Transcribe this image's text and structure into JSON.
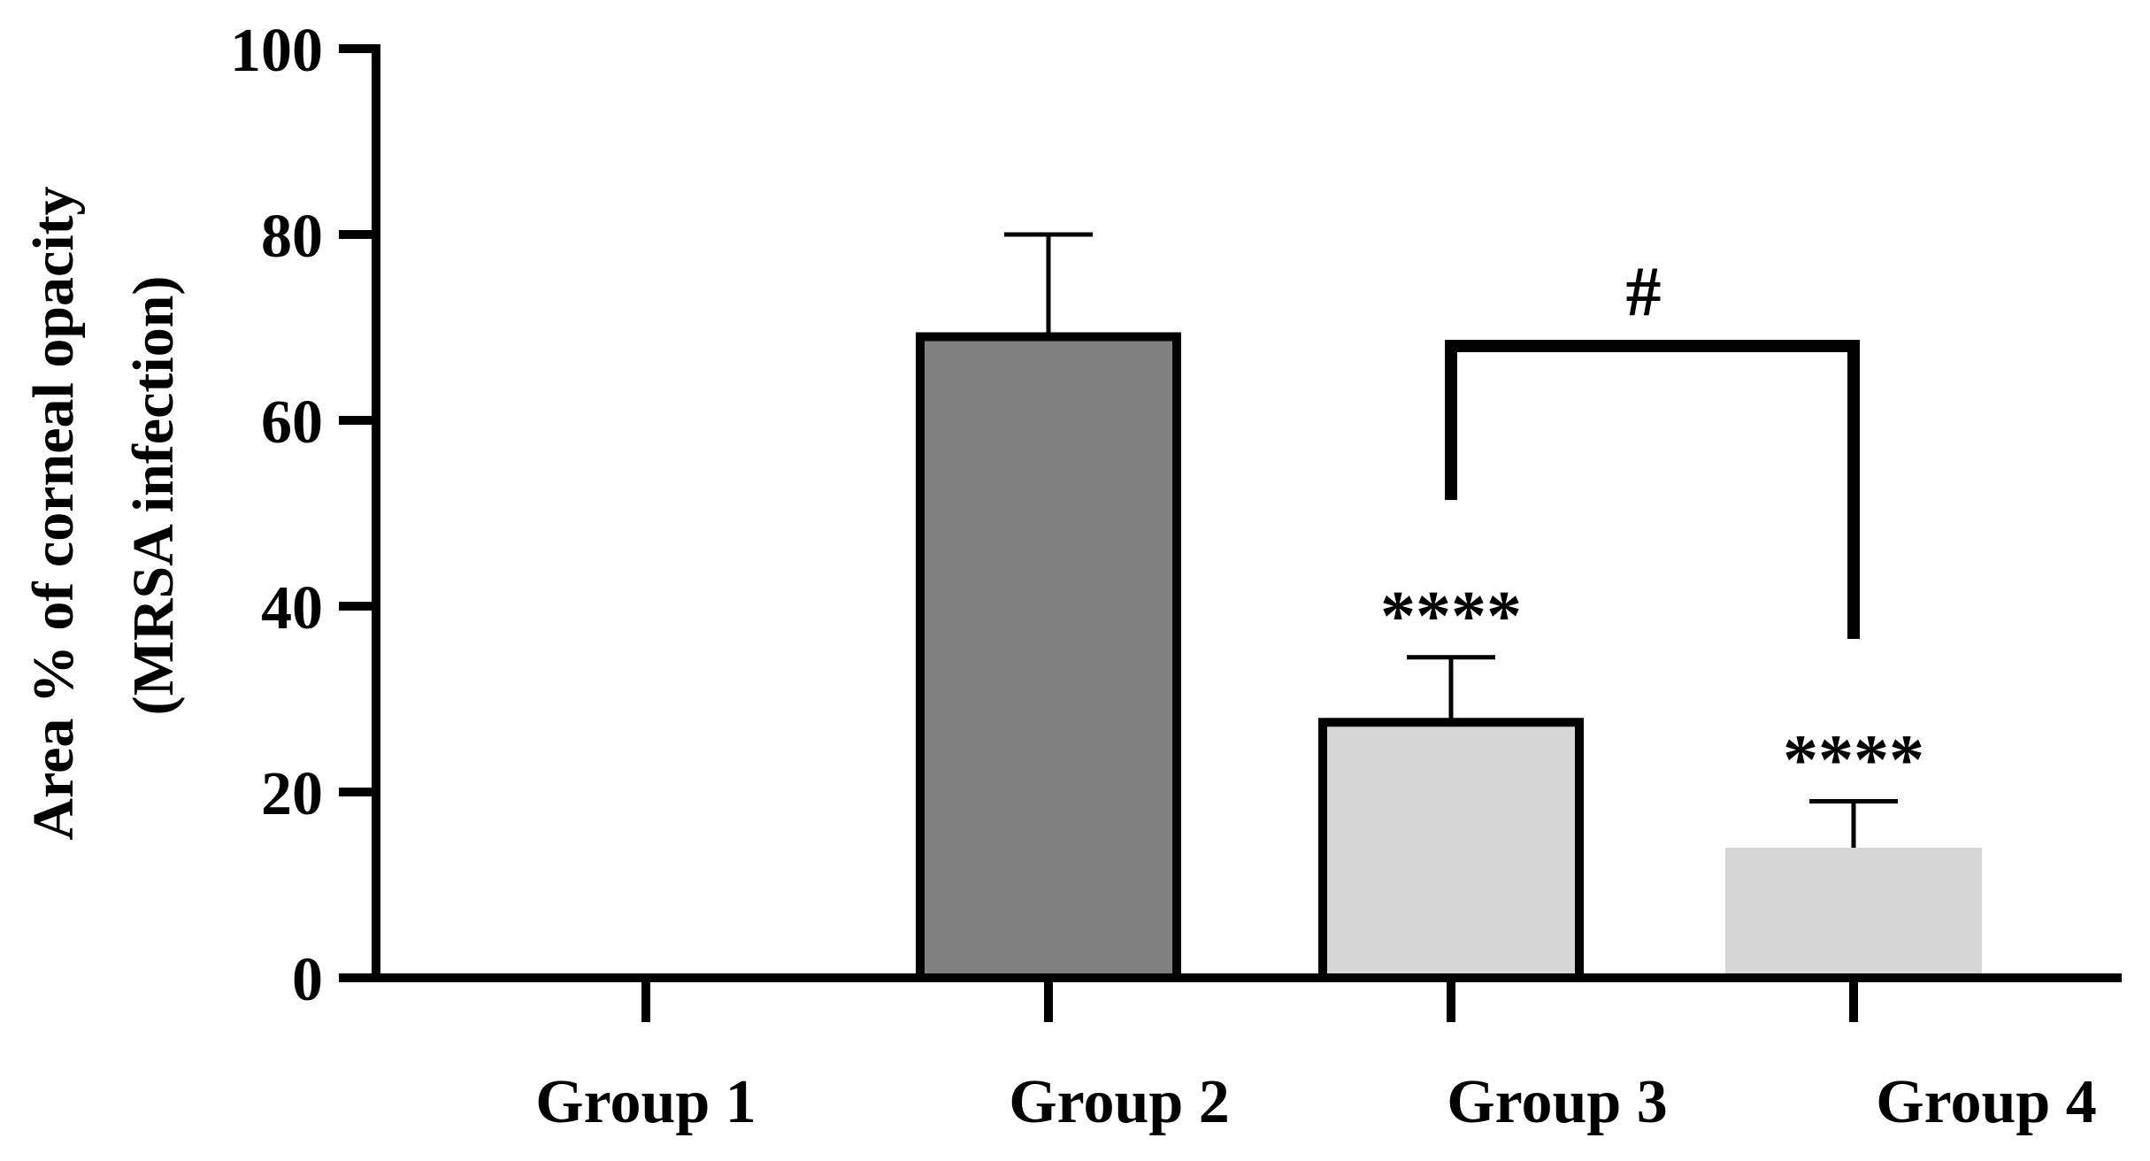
{
  "chart_data": {
    "type": "bar",
    "categories": [
      "Group 1",
      "Group 2",
      "Group 3",
      "Group 4"
    ],
    "values": [
      0,
      69,
      27.5,
      14
    ],
    "errors": [
      0,
      11,
      7,
      5
    ],
    "bar_fills": [
      "#ffffff",
      "#808080",
      "#d6d6d6",
      "#d6d6d6"
    ],
    "bar_outlined": [
      true,
      true,
      true,
      false
    ],
    "ylabel_line1": "Area % of corneal opacity",
    "ylabel_line2": "(MRSA infection)",
    "ylim": [
      0,
      100
    ],
    "yticks": [
      "0",
      "20",
      "40",
      "60",
      "80",
      "100"
    ],
    "annotations": [
      {
        "category": "Group 3",
        "text": "****"
      },
      {
        "category": "Group 4",
        "text": "****"
      }
    ],
    "comparison": {
      "from": "Group 3",
      "to": "Group 4",
      "level": 68,
      "text": "#"
    },
    "grid": false,
    "legend": "none"
  }
}
